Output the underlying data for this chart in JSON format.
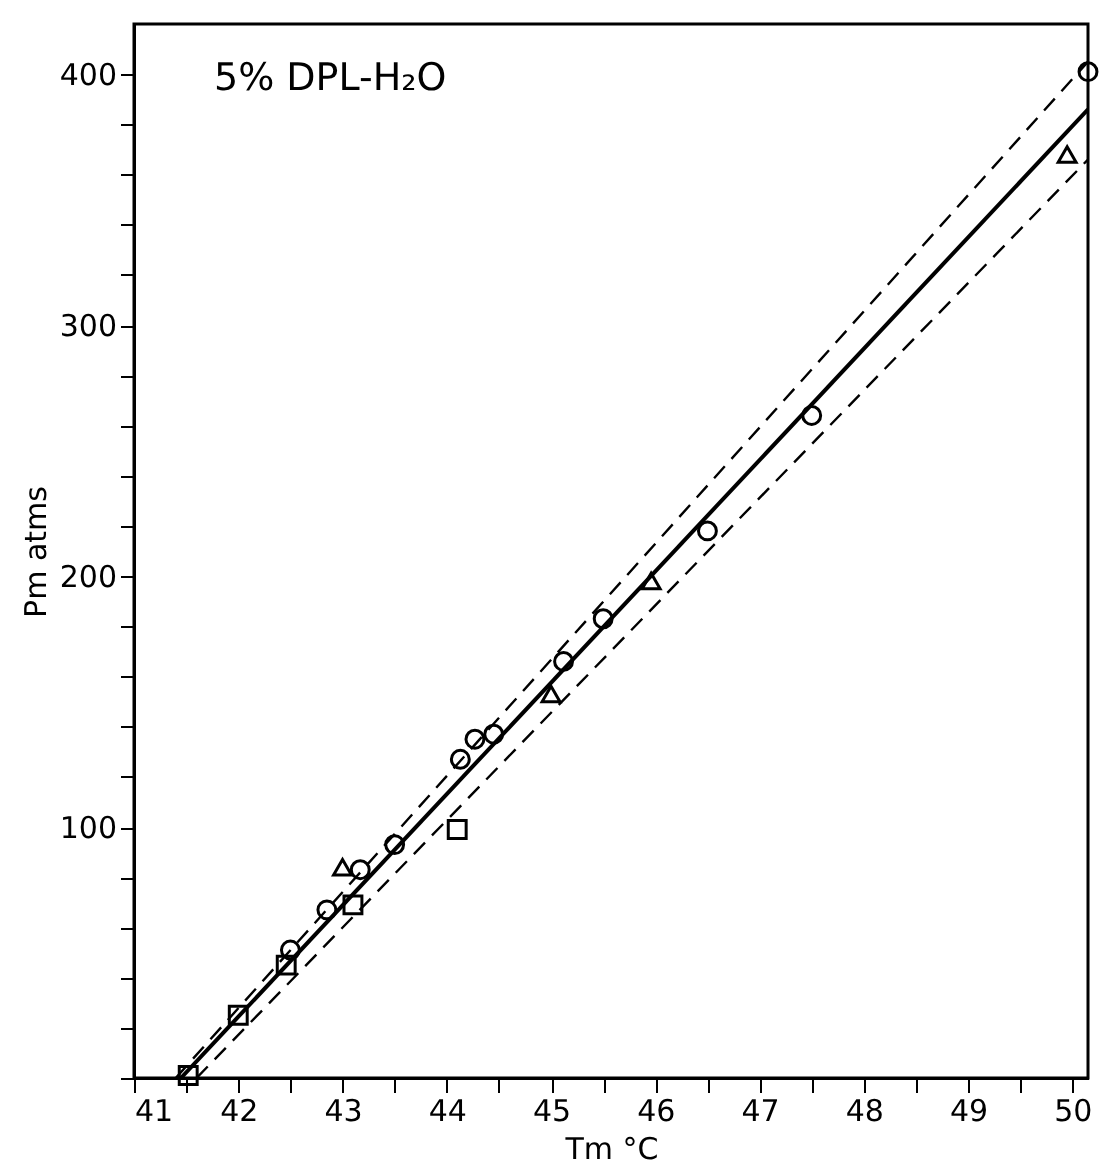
{
  "chart_data": {
    "type": "scatter",
    "title": "5% DPL-H₂O",
    "xlabel": "Tm °C",
    "ylabel": "Pm atms",
    "xlim": [
      41,
      50.15
    ],
    "ylim": [
      0,
      420
    ],
    "xticks": [
      41,
      {
        "value": 41.5,
        "label": null
      },
      42,
      {
        "value": 42.5,
        "label": null
      },
      43,
      {
        "value": 43.5,
        "label": null
      },
      44,
      {
        "value": 44.5,
        "label": null
      },
      45,
      {
        "value": 45.5,
        "label": null
      },
      46,
      {
        "value": 46.5,
        "label": null
      },
      47,
      {
        "value": 47.5,
        "label": null
      },
      48,
      {
        "value": 48.5,
        "label": null
      },
      49,
      {
        "value": 49.5,
        "label": null
      },
      50
    ],
    "yticks": [
      {
        "value": 0,
        "label": null
      },
      {
        "value": 20,
        "label": null
      },
      {
        "value": 40,
        "label": null
      },
      {
        "value": 60,
        "label": null
      },
      {
        "value": 80,
        "label": null
      },
      100,
      {
        "value": 120,
        "label": null
      },
      {
        "value": 140,
        "label": null
      },
      {
        "value": 160,
        "label": null
      },
      {
        "value": 180,
        "label": null
      },
      200,
      {
        "value": 220,
        "label": null
      },
      {
        "value": 240,
        "label": null
      },
      {
        "value": 260,
        "label": null
      },
      {
        "value": 280,
        "label": null
      },
      300,
      {
        "value": 320,
        "label": null
      },
      {
        "value": 340,
        "label": null
      },
      {
        "value": 360,
        "label": null
      },
      {
        "value": 380,
        "label": null
      },
      400
    ],
    "grid": false,
    "series": [
      {
        "marker": "square",
        "color": "#000000",
        "x": [
          41.52,
          42.0,
          42.46,
          43.1,
          44.1
        ],
        "values": [
          1,
          25,
          45,
          69,
          99
        ]
      },
      {
        "marker": "circle",
        "color": "#000000",
        "x": [
          42.5,
          42.85,
          43.17,
          43.5,
          44.13,
          44.27,
          44.45,
          45.12,
          45.5,
          46.5,
          47.5,
          50.15
        ],
        "values": [
          51,
          67,
          83,
          93,
          127,
          135,
          137,
          166,
          183,
          218,
          264,
          401
        ]
      },
      {
        "marker": "triangle",
        "color": "#000000",
        "x": [
          43.0,
          45.0,
          45.96,
          49.95
        ],
        "values": [
          84,
          153,
          198,
          368
        ]
      },
      {
        "type": "line",
        "line_style": "solid",
        "color": "#000000",
        "x": [
          41.45,
          50.15
        ],
        "values": [
          0,
          386
        ]
      },
      {
        "type": "line",
        "line_style": "dashed",
        "color": "#000000",
        "x": [
          41.4,
          50.15
        ],
        "values": [
          0,
          405
        ]
      },
      {
        "type": "line",
        "line_style": "dashed",
        "color": "#000000",
        "x": [
          41.6,
          50.15
        ],
        "values": [
          0,
          366
        ]
      }
    ]
  }
}
